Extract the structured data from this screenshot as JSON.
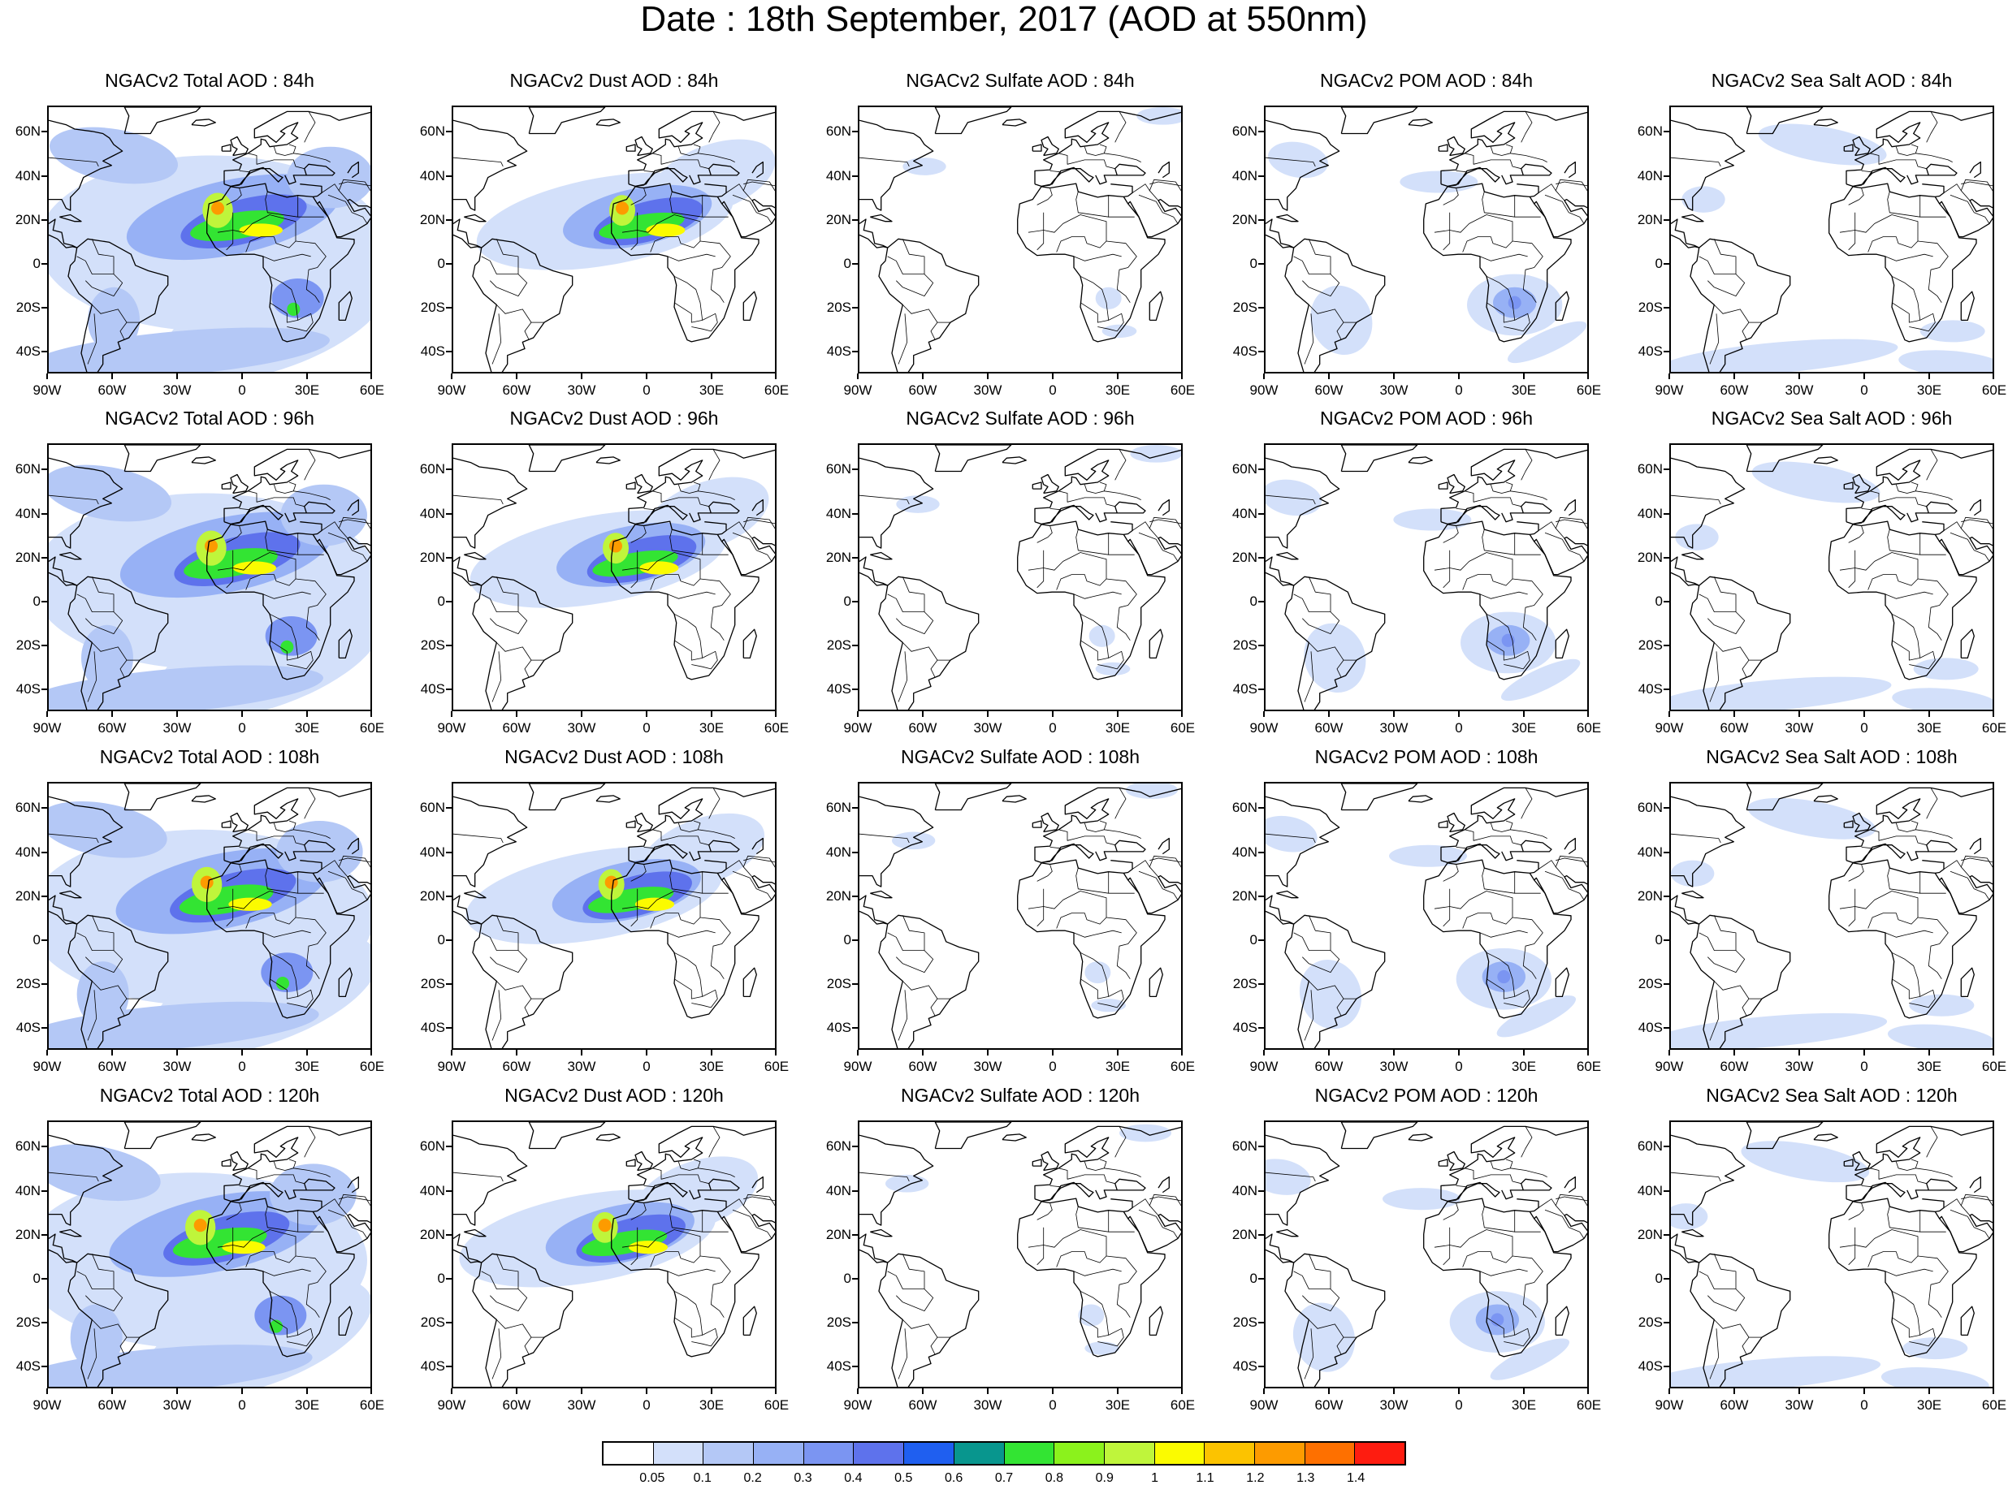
{
  "title": "Date : 18th September, 2017 (AOD at 550nm)",
  "columns": [
    {
      "species": "total",
      "label": "NGACv2 Total AOD"
    },
    {
      "species": "dust",
      "label": "NGACv2 Dust AOD"
    },
    {
      "species": "sulfate",
      "label": "NGACv2 Sulfate AOD"
    },
    {
      "species": "pom",
      "label": "NGACv2 POM AOD"
    },
    {
      "species": "seasalt",
      "label": "NGACv2 Sea Salt AOD"
    }
  ],
  "panels": [
    {
      "title": "NGACv2 Total AOD : 84h",
      "species": "total",
      "hour": 84
    },
    {
      "title": "NGACv2 Dust AOD : 84h",
      "species": "dust",
      "hour": 84
    },
    {
      "title": "NGACv2 Sulfate AOD : 84h",
      "species": "sulfate",
      "hour": 84
    },
    {
      "title": "NGACv2 POM AOD : 84h",
      "species": "pom",
      "hour": 84
    },
    {
      "title": "NGACv2 Sea Salt AOD : 84h",
      "species": "seasalt",
      "hour": 84
    },
    {
      "title": "NGACv2 Total AOD : 96h",
      "species": "total",
      "hour": 96
    },
    {
      "title": "NGACv2 Dust AOD : 96h",
      "species": "dust",
      "hour": 96
    },
    {
      "title": "NGACv2 Sulfate AOD : 96h",
      "species": "sulfate",
      "hour": 96
    },
    {
      "title": "NGACv2 POM AOD : 96h",
      "species": "pom",
      "hour": 96
    },
    {
      "title": "NGACv2 Sea Salt AOD : 96h",
      "species": "seasalt",
      "hour": 96
    },
    {
      "title": "NGACv2 Total AOD : 108h",
      "species": "total",
      "hour": 108
    },
    {
      "title": "NGACv2 Dust AOD : 108h",
      "species": "dust",
      "hour": 108
    },
    {
      "title": "NGACv2 Sulfate AOD : 108h",
      "species": "sulfate",
      "hour": 108
    },
    {
      "title": "NGACv2 POM AOD : 108h",
      "species": "pom",
      "hour": 108
    },
    {
      "title": "NGACv2 Sea Salt AOD : 108h",
      "species": "seasalt",
      "hour": 108
    },
    {
      "title": "NGACv2 Total AOD : 120h",
      "species": "total",
      "hour": 120
    },
    {
      "title": "NGACv2 Dust AOD : 120h",
      "species": "dust",
      "hour": 120
    },
    {
      "title": "NGACv2 Sulfate AOD : 120h",
      "species": "sulfate",
      "hour": 120
    },
    {
      "title": "NGACv2 POM AOD : 120h",
      "species": "pom",
      "hour": 120
    },
    {
      "title": "NGACv2 Sea Salt  AOD : 120h",
      "species": "seasalt",
      "hour": 120
    }
  ],
  "map_extent": {
    "lon": [
      -90,
      60
    ],
    "lat": [
      -50,
      72
    ]
  },
  "lat_ticks": [
    {
      "value": 60,
      "label": "60N"
    },
    {
      "value": 40,
      "label": "40N"
    },
    {
      "value": 20,
      "label": "20N"
    },
    {
      "value": 0,
      "label": "0"
    },
    {
      "value": -20,
      "label": "20S"
    },
    {
      "value": -40,
      "label": "40S"
    }
  ],
  "lon_ticks": [
    {
      "value": -90,
      "label": "90W"
    },
    {
      "value": -60,
      "label": "60W"
    },
    {
      "value": -30,
      "label": "30W"
    },
    {
      "value": 0,
      "label": "0"
    },
    {
      "value": 30,
      "label": "30E"
    },
    {
      "value": 60,
      "label": "60E"
    }
  ],
  "colorbar": {
    "labels": [
      "0.05",
      "0.1",
      "0.2",
      "0.3",
      "0.4",
      "0.5",
      "0.6",
      "0.7",
      "0.8",
      "0.9",
      "1",
      "1.1",
      "1.2",
      "1.3",
      "1.4"
    ],
    "colors": [
      "#ffffff",
      "#d3e0fa",
      "#b4c8f6",
      "#97b1f5",
      "#7b95f2",
      "#5e72ec",
      "#1f5ff0",
      "#08968e",
      "#33e433",
      "#8bf21c",
      "#bff53b",
      "#fbfb00",
      "#fcc300",
      "#fd9b00",
      "#fe7000",
      "#fe1c10"
    ]
  }
}
